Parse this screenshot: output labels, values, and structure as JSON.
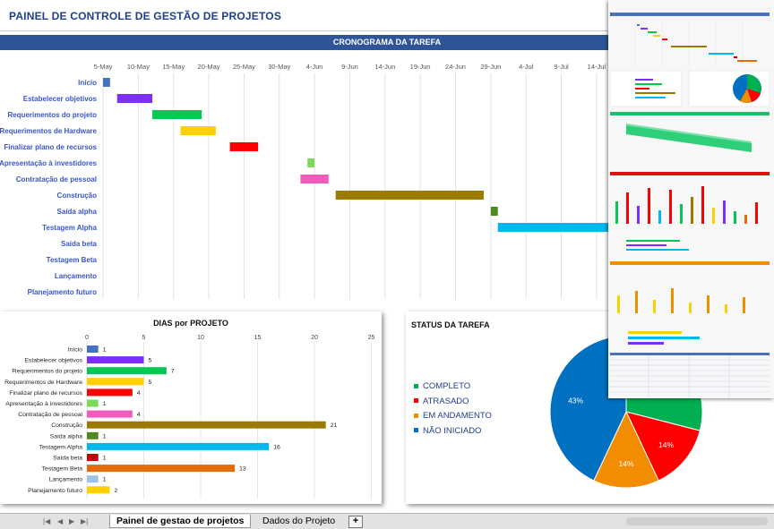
{
  "page": {
    "title": "PAINEL DE CONTROLE DE GESTÃO DE PROJETOS",
    "gantt_title": "CRONOGRAMA DA TAREFA",
    "days_title": "DIAS por PROJETO",
    "status_title": "STATUS DA TAREFA"
  },
  "colors": {
    "header_bg": "#2e5597",
    "task_label": "#3a56c8",
    "completo": "#00b050",
    "atrasado": "#ff0000",
    "em_andamento": "#f28c00",
    "nao_iniciado": "#0070c0"
  },
  "chart_data": [
    {
      "type": "bar",
      "subtype": "gantt",
      "title": "CRONOGRAMA DA TAREFA",
      "x_tick_labels": [
        "5-May",
        "10-May",
        "15-May",
        "20-May",
        "25-May",
        "30-May",
        "4-Jun",
        "9-Jun",
        "14-Jun",
        "19-Jun",
        "24-Jun",
        "29-Jun",
        "4-Jul",
        "9-Jul",
        "14-Jul"
      ],
      "xlim": [
        "2017-05-05",
        "2017-07-14"
      ],
      "grid": true,
      "tasks": [
        {
          "name": "Início",
          "start": "2017-05-05",
          "days": 1,
          "color": "#4472c4"
        },
        {
          "name": "Estabelecer objetivos",
          "start": "2017-05-07",
          "days": 5,
          "color": "#7b2ff7"
        },
        {
          "name": "Requerimentos do projeto",
          "start": "2017-05-12",
          "days": 7,
          "color": "#00c853"
        },
        {
          "name": "Requerimentos de Hardware",
          "start": "2017-05-16",
          "days": 5,
          "color": "#ffd000"
        },
        {
          "name": "Finalizar plano de recursos",
          "start": "2017-05-23",
          "days": 4,
          "color": "#ff0000"
        },
        {
          "name": "Apresentação à investidores",
          "start": "2017-06-03",
          "days": 1,
          "color": "#7ed957"
        },
        {
          "name": "Contratação de pessoal",
          "start": "2017-06-02",
          "days": 4,
          "color": "#f05bbd"
        },
        {
          "name": "Construção",
          "start": "2017-06-07",
          "days": 21,
          "color": "#9a7b00"
        },
        {
          "name": "Saída alpha",
          "start": "2017-06-29",
          "days": 1,
          "color": "#4f8a1c"
        },
        {
          "name": "Testagem Alpha",
          "start": "2017-06-30",
          "days": 16,
          "color": "#00b8f0"
        },
        {
          "name": "Saída beta",
          "start": null,
          "days": 1,
          "color": "#cc0000"
        },
        {
          "name": "Testagem Beta",
          "start": null,
          "days": 13,
          "color": "#e36c09"
        },
        {
          "name": "Lançamento",
          "start": null,
          "days": 1,
          "color": "#9dc3e6"
        },
        {
          "name": "Planejamento futuro",
          "start": null,
          "days": 2,
          "color": "#ffd000"
        }
      ]
    },
    {
      "type": "bar",
      "orientation": "horizontal",
      "title": "DIAS por PROJETO",
      "xlim": [
        0,
        25
      ],
      "x_ticks": [
        0,
        5,
        10,
        15,
        20,
        25
      ],
      "grid": true,
      "categories": [
        "Início",
        "Estabelecer objetivos",
        "Requerimentos do projeto",
        "Requerimentos de Hardware",
        "Finalizar plano de recursos",
        "Apresentação à investidores",
        "Contratação de pessoal",
        "Construção",
        "Saída alpha",
        "Testagem Alpha",
        "Saída beta",
        "Testagem Beta",
        "Lançamento",
        "Planejamento futuro"
      ],
      "values": [
        1,
        5,
        7,
        5,
        4,
        1,
        4,
        21,
        1,
        16,
        1,
        13,
        1,
        2
      ],
      "colors": [
        "#4472c4",
        "#7b2ff7",
        "#00c853",
        "#ffd000",
        "#ff0000",
        "#7ed957",
        "#f05bbd",
        "#9a7b00",
        "#4f8a1c",
        "#00b8f0",
        "#cc0000",
        "#e36c09",
        "#9dc3e6",
        "#ffd000"
      ]
    },
    {
      "type": "pie",
      "title": "STATUS DA TAREFA",
      "legend_position": "left",
      "labels": [
        "COMPLETO",
        "ATRASADO",
        "EM ANDAMENTO",
        "NÃO INICIADO"
      ],
      "values": [
        29,
        14,
        14,
        43
      ],
      "value_labels": [
        "",
        "14%",
        "14%",
        "43%"
      ],
      "colors": [
        "#00b050",
        "#ff0000",
        "#f28c00",
        "#0070c0"
      ]
    }
  ],
  "tabs": {
    "dashboard": "Painel de gestao de projetos",
    "data": "Dados do Projeto",
    "add": "+"
  },
  "nav": {
    "first": "|◀",
    "prev": "◀",
    "next": "▶",
    "last": "▶|"
  }
}
